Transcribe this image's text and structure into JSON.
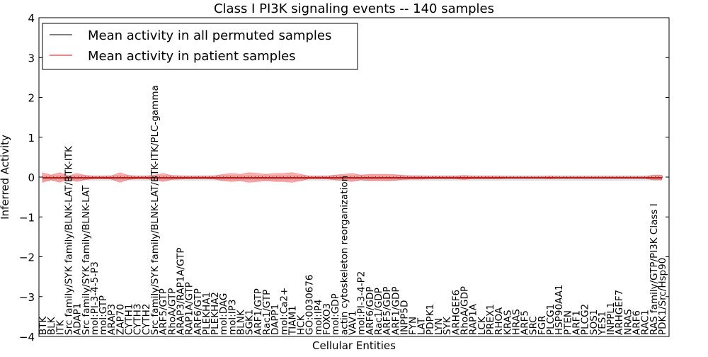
{
  "chart_data": {
    "type": "line",
    "title": "Class I PI3K signaling events -- 140 samples",
    "xlabel": "Cellular Entities",
    "ylabel": "Inferred Activity",
    "ylim": [
      -4,
      4
    ],
    "yticks": [
      -4,
      -3,
      -2,
      -1,
      0,
      1,
      2,
      3,
      4
    ],
    "legend_position": "top-left",
    "categories": [
      "BTK",
      "BLK",
      "ITK",
      "Src family/SYK family/BLNK-LAT/BTK-ITK",
      "ADAP1",
      "Src family/SYK family/BLNK-LAT",
      "mol:PI-3-4-5-P3",
      "mol:GTP",
      "ARAP3",
      "ZAP70",
      "CYTH1",
      "CYTH3",
      "CYTH2",
      "Src family/SYK family/BLNK-LAT/BTK-ITK/PLC-gamma",
      "ARF5/GTP",
      "RhoA/GTP",
      "ARAP3/RAP1A/GTP",
      "RAP1A/GTP",
      "ARF6/GTP",
      "PLEKHA1",
      "PLEKHA2",
      "mol:DAG",
      "mol:IP3",
      "BLNK",
      "SGK1",
      "ARF1/GTP",
      "Rac1/GTP",
      "DAPP1",
      "mol:Ca2+",
      "TIAM1",
      "HCK",
      "GO:0030676",
      "mol:IP4",
      "FOXO3",
      "mol:GDP",
      "actin cytoskeleton reorganization",
      "VAV1",
      "mol:PI-3-4-P2",
      "ARF6/GDP",
      "Rac1/GDP",
      "ARF5/GDP",
      "ARF1/GDP",
      "INPP5D",
      "FYN",
      "LAT",
      "PDPK1",
      "LYN",
      "SYK",
      "ARHGEF6",
      "RhoA/GDP",
      "RAP1A",
      "LCK",
      "PREX1",
      "RHOA",
      "KRAS",
      "HRAS",
      "ARF5",
      "SRC",
      "FGR",
      "PLCG1",
      "HSP90AA1",
      "PTEN",
      "ARF1",
      "PLCG2",
      "SOS1",
      "YES1",
      "INPPL1",
      "ARHGEF7",
      "NRAS",
      "ARF6",
      "RAC1",
      "RAS family/GTP/PI3K Class I",
      "PDK1/Src/Hsp90"
    ],
    "series": [
      {
        "name": "Mean activity in all permuted samples",
        "color": "#000000",
        "mean": -0.02,
        "std": 0.07
      },
      {
        "name": "Mean activity in patient samples",
        "color": "#ff0000",
        "mean": -0.01,
        "std": [
          0.12,
          0.06,
          0.12,
          0.04,
          0.1,
          0.05,
          0.03,
          0.03,
          0.04,
          0.12,
          0.05,
          0.03,
          0.03,
          0.06,
          0.1,
          0.05,
          0.04,
          0.03,
          0.03,
          0.03,
          0.04,
          0.08,
          0.1,
          0.08,
          0.12,
          0.1,
          0.08,
          0.1,
          0.1,
          0.12,
          0.08,
          0.03,
          0.03,
          0.03,
          0.06,
          0.08,
          0.1,
          0.06,
          0.08,
          0.08,
          0.08,
          0.07,
          0.05,
          0.04,
          0.04,
          0.03,
          0.03,
          0.03,
          0.03,
          0.05,
          0.03,
          0.03,
          0.03,
          0.03,
          0.02,
          0.02,
          0.02,
          0.02,
          0.02,
          0.03,
          0.02,
          0.02,
          0.02,
          0.02,
          0.02,
          0.02,
          0.02,
          0.02,
          0.02,
          0.02,
          0.02,
          0.06,
          0.06
        ]
      }
    ]
  }
}
